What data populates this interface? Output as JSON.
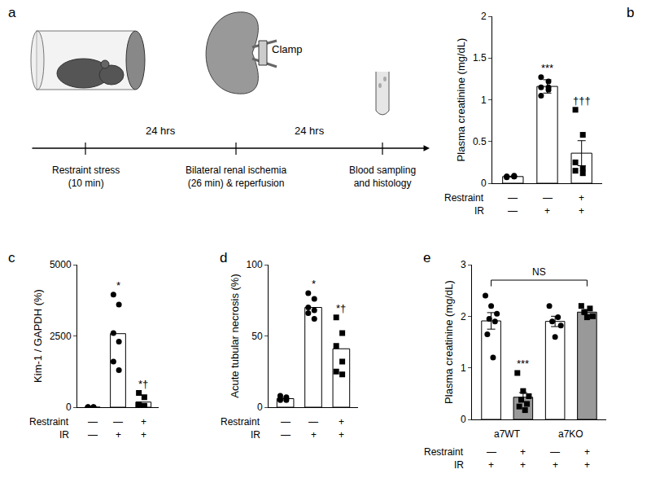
{
  "diagram": {
    "panel": "a",
    "steps": [
      [
        "Restraint stress",
        "(10 min)"
      ],
      [
        "Bilateral renal ischemia",
        "(26 min) & reperfusion"
      ],
      [
        "Blood sampling",
        "and histology"
      ]
    ],
    "intervals": [
      "24 hrs",
      "24 hrs"
    ],
    "clamp_label": "Clamp"
  },
  "chart_data": [
    {
      "panel": "b",
      "type": "bar",
      "y_label": "Plasma creatinine (mg/dL)",
      "categories": [
        null,
        null,
        null
      ],
      "values": [
        0.08,
        1.16,
        0.36
      ],
      "errors": [
        0.005,
        0.08,
        0.15
      ],
      "color": "#ffffff",
      "points": [
        {
          "marker": "circle",
          "values": [
            0.08,
            0.08,
            0.07,
            0.09,
            0.08,
            0.08
          ]
        },
        {
          "marker": "circle",
          "values": [
            1.27,
            1.22,
            1.15,
            1.15,
            1.05,
            1.12
          ]
        },
        {
          "marker": "square",
          "values": [
            0.88,
            0.58,
            0.25,
            0.18,
            0.15,
            0.12
          ]
        }
      ],
      "significance": [
        null,
        "***",
        "†††"
      ],
      "condition_table": [
        {
          "label": "Restraint",
          "values": [
            "—",
            "—",
            "+"
          ]
        },
        {
          "label": "IR",
          "values": [
            "—",
            "+",
            "+"
          ]
        }
      ],
      "ylim": [
        0,
        2
      ],
      "yticks": [
        0,
        0.5,
        1,
        1.5,
        2
      ],
      "tick_labels": "y"
    },
    {
      "panel": "c",
      "type": "bar",
      "y_label": "Kim-1 / GAPDH (%)",
      "categories": [
        null,
        null,
        null
      ],
      "values": [
        0,
        2580,
        180
      ],
      "color": "#ffffff",
      "points": [
        {
          "marker": "circle",
          "values": [
            0,
            0,
            0,
            0,
            0,
            0
          ]
        },
        {
          "marker": "circle",
          "values": [
            3950,
            3600,
            2600,
            2300,
            1600,
            1300
          ]
        },
        {
          "marker": "square",
          "values": [
            500,
            350,
            100,
            50,
            30,
            20
          ]
        }
      ],
      "significance": [
        null,
        "*",
        "*†"
      ],
      "condition_table": [
        {
          "label": "Restraint",
          "values": [
            "—",
            "—",
            "+"
          ]
        },
        {
          "label": "IR",
          "values": [
            "—",
            "+",
            "+"
          ]
        }
      ],
      "ylim": [
        0,
        5000
      ],
      "yticks": [
        0,
        2500,
        5000
      ],
      "tick_labels": "y"
    },
    {
      "panel": "d",
      "type": "bar",
      "y_label": "Acute tubular necrosis (%)",
      "categories": [
        null,
        null,
        null
      ],
      "values": [
        6,
        70,
        41
      ],
      "color": "#ffffff",
      "points": [
        {
          "marker": "circle",
          "values": [
            8,
            7,
            6,
            5,
            5,
            6
          ]
        },
        {
          "marker": "circle",
          "values": [
            80,
            76,
            70,
            68,
            66,
            62
          ]
        },
        {
          "marker": "square",
          "values": [
            63,
            52,
            43,
            32,
            25,
            23
          ]
        }
      ],
      "significance": [
        null,
        "*",
        "*†"
      ],
      "condition_table": [
        {
          "label": "Restraint",
          "values": [
            "—",
            "—",
            "+"
          ]
        },
        {
          "label": "IR",
          "values": [
            "—",
            "+",
            "+"
          ]
        }
      ],
      "ylim": [
        0,
        100
      ],
      "yticks": [
        0,
        50,
        100
      ],
      "tick_labels": "y"
    },
    {
      "panel": "e",
      "type": "bar",
      "y_label": "Plasma creatinine (mg/dL)",
      "categories": [
        null,
        null,
        null,
        null
      ],
      "values": [
        1.91,
        0.43,
        1.9,
        2.08
      ],
      "errors": [
        0.16,
        0.09,
        0.1,
        0.05
      ],
      "colors": [
        "#ffffff",
        "#999999",
        "#ffffff",
        "#999999"
      ],
      "points": [
        {
          "marker": "circle",
          "values": [
            2.4,
            2.2,
            2.05,
            1.95,
            1.9,
            1.65,
            1.2
          ]
        },
        {
          "marker": "square",
          "values": [
            0.9,
            0.55,
            0.45,
            0.38,
            0.3,
            0.25,
            0.18
          ]
        },
        {
          "marker": "circle",
          "values": [
            2.2,
            1.98,
            1.9,
            1.82,
            1.6
          ]
        },
        {
          "marker": "square",
          "values": [
            2.2,
            2.15,
            2.08,
            2.0,
            1.98
          ]
        }
      ],
      "significance": [
        null,
        "***",
        null,
        null
      ],
      "bracket": {
        "text": "NS",
        "from": 0,
        "to": 3
      },
      "group_labels": [
        "a7WT",
        "a7KO"
      ],
      "condition_table": [
        {
          "label": "Restraint",
          "values": [
            "—",
            "+",
            "—",
            "+"
          ]
        },
        {
          "label": "IR",
          "values": [
            "+",
            "+",
            "+",
            "+"
          ]
        }
      ],
      "ylim": [
        0,
        3
      ],
      "yticks": [
        0,
        1,
        2,
        3
      ],
      "tick_labels": "y"
    }
  ]
}
